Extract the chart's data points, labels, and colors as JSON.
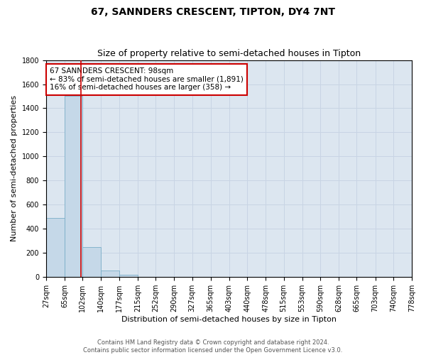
{
  "title": "67, SANNDERS CRESCENT, TIPTON, DY4 7NT",
  "subtitle": "Size of property relative to semi-detached houses in Tipton",
  "xlabel": "Distribution of semi-detached houses by size in Tipton",
  "ylabel": "Number of semi-detached properties",
  "bin_edges": [
    27,
    65,
    102,
    140,
    177,
    215,
    252,
    290,
    327,
    365,
    403,
    440,
    478,
    515,
    553,
    590,
    628,
    665,
    703,
    740,
    778
  ],
  "bar_heights": [
    490,
    1500,
    250,
    55,
    20,
    0,
    0,
    0,
    0,
    0,
    0,
    0,
    0,
    0,
    0,
    0,
    0,
    0,
    0,
    0
  ],
  "bar_color": "#c5d8e8",
  "bar_edge_color": "#7aaec8",
  "property_size": 98,
  "red_line_color": "#cc0000",
  "annotation_text_line1": "67 SANNDERS CRESCENT: 98sqm",
  "annotation_text_line2": "← 83% of semi-detached houses are smaller (1,891)",
  "annotation_text_line3": "16% of semi-detached houses are larger (358) →",
  "annotation_box_color": "#ffffff",
  "annotation_box_edge": "#cc0000",
  "ylim": [
    0,
    1800
  ],
  "yticks": [
    0,
    200,
    400,
    600,
    800,
    1000,
    1200,
    1400,
    1600,
    1800
  ],
  "grid_color": "#c8d4e4",
  "bg_color": "#dce6f0",
  "footer_line1": "Contains HM Land Registry data © Crown copyright and database right 2024.",
  "footer_line2": "Contains public sector information licensed under the Open Government Licence v3.0.",
  "title_fontsize": 10,
  "subtitle_fontsize": 9,
  "ylabel_fontsize": 8,
  "xlabel_fontsize": 8,
  "tick_fontsize": 7,
  "annot_fontsize": 7.5,
  "footer_fontsize": 6
}
